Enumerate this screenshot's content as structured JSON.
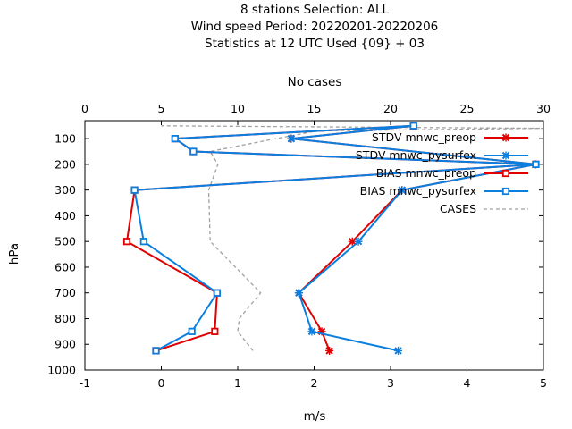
{
  "colors": {
    "stdv_preop": "#e00000",
    "stdv_pysurfex": "#0a7fe0",
    "bias_preop": "#e00000",
    "bias_pysurfex": "#0a7fe0",
    "cases": "#a0a0a0",
    "axis": "#000000"
  },
  "chart_data": {
    "type": "line",
    "title": [
      "8 stations Selection: ALL",
      "Wind speed  Period: 20220201-20220206",
      "Statistics at 12 UTC  Used {09} + 03"
    ],
    "xlabel": "m/s",
    "x2label": "No cases",
    "ylabel": "hPa",
    "xlim": [
      -1,
      5
    ],
    "x2lim": [
      0,
      30
    ],
    "ylim": [
      1000,
      30
    ],
    "y_inverted": true,
    "xticks": [
      "-1",
      "0",
      "1",
      "2",
      "3",
      "4",
      "5"
    ],
    "x2ticks": [
      "0",
      "5",
      "10",
      "15",
      "20",
      "25",
      "30"
    ],
    "yticks": [
      "100",
      "200",
      "300",
      "400",
      "500",
      "600",
      "700",
      "800",
      "900",
      "1000"
    ],
    "legend_position": "top-right",
    "series": [
      {
        "name": "STDV mnwc_preop",
        "color_key": "stdv_preop",
        "marker": "x",
        "dash": false,
        "axis": "x",
        "points": [
          [
            2.2,
            925
          ],
          [
            2.1,
            850
          ],
          [
            1.8,
            700
          ],
          [
            2.5,
            500
          ],
          [
            3.15,
            300
          ],
          [
            4.9,
            200
          ],
          [
            1.7,
            100
          ],
          [
            3.3,
            50
          ]
        ]
      },
      {
        "name": "STDV mnwc_pysurfex",
        "color_key": "stdv_pysurfex",
        "marker": "x",
        "dash": false,
        "axis": "x",
        "points": [
          [
            3.1,
            925
          ],
          [
            1.97,
            850
          ],
          [
            1.8,
            700
          ],
          [
            2.58,
            500
          ],
          [
            3.15,
            300
          ],
          [
            4.9,
            200
          ],
          [
            1.7,
            100
          ],
          [
            3.3,
            50
          ]
        ]
      },
      {
        "name": "BIAS mnwc_preop",
        "color_key": "bias_preop",
        "marker": "square",
        "dash": false,
        "axis": "x",
        "points": [
          [
            -0.07,
            925
          ],
          [
            0.7,
            850
          ],
          [
            0.73,
            700
          ],
          [
            -0.45,
            500
          ],
          [
            -0.35,
            300
          ],
          [
            4.9,
            200
          ],
          [
            0.42,
            150
          ],
          [
            0.18,
            100
          ],
          [
            3.3,
            50
          ]
        ]
      },
      {
        "name": "BIAS mnwc_pysurfex",
        "color_key": "bias_pysurfex",
        "marker": "square",
        "dash": false,
        "axis": "x",
        "points": [
          [
            -0.07,
            925
          ],
          [
            0.4,
            850
          ],
          [
            0.73,
            700
          ],
          [
            -0.23,
            500
          ],
          [
            -0.35,
            300
          ],
          [
            4.9,
            200
          ],
          [
            0.42,
            150
          ],
          [
            0.18,
            100
          ],
          [
            3.3,
            50
          ]
        ]
      },
      {
        "name": "CASES",
        "color_key": "cases",
        "marker": "none",
        "dash": true,
        "axis": "x2",
        "points": [
          [
            11,
            925
          ],
          [
            10,
            850
          ],
          [
            10.1,
            800
          ],
          [
            11.5,
            700
          ],
          [
            8.2,
            500
          ],
          [
            8.1,
            300
          ],
          [
            8.7,
            200
          ],
          [
            8.2,
            150
          ],
          [
            12.5,
            100
          ],
          [
            15.2,
            70
          ],
          [
            30,
            60
          ],
          [
            5,
            50
          ]
        ]
      }
    ]
  }
}
